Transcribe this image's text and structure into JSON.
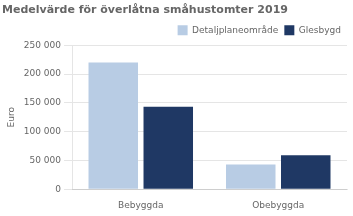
{
  "chart_data": {
    "type": "bar",
    "title": "Medelvärde för överlåtna småhustomter 2019",
    "ylabel": "Euro",
    "categories": [
      "Bebyggda",
      "Obebyggda"
    ],
    "series": [
      {
        "name": "Detaljplaneområde",
        "values": [
          220000,
          43000
        ],
        "color": "#b8cce4"
      },
      {
        "name": "Glesbygd",
        "values": [
          143000,
          59000
        ],
        "color": "#1f3864"
      }
    ],
    "ylim": [
      0,
      250000
    ],
    "yticks": [
      0,
      {
        "value": 50000,
        "label": "50 000"
      },
      {
        "value": 100000,
        "label": "100 000"
      },
      {
        "value": 150000,
        "label": "150 000"
      },
      {
        "value": 200000,
        "label": "200 000"
      },
      {
        "value": 250000,
        "label": "250 000"
      }
    ],
    "grid": true,
    "legend": "upper right"
  }
}
